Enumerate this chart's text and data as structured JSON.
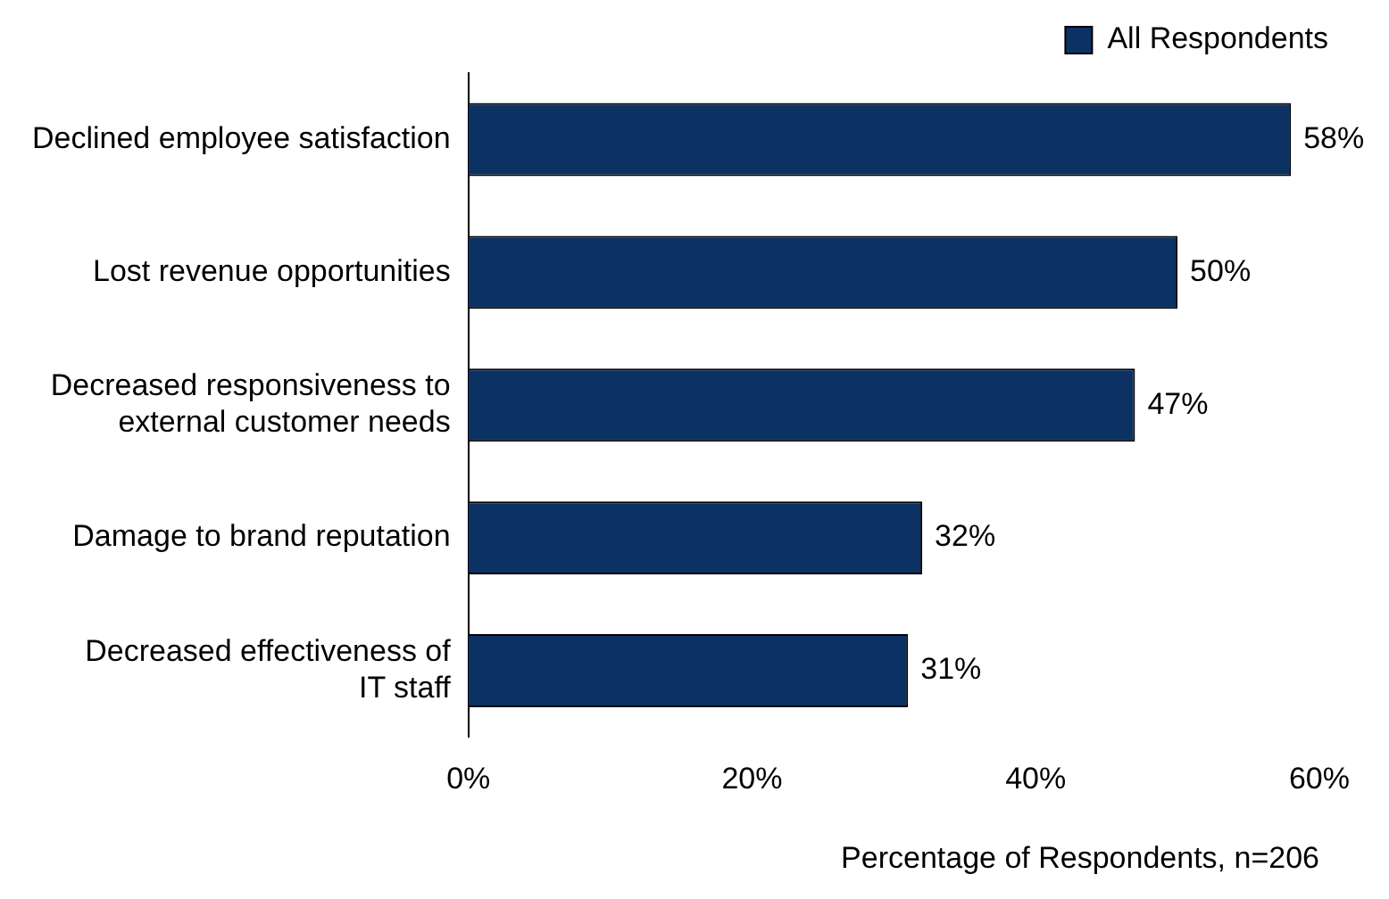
{
  "chart_data": {
    "type": "bar",
    "orientation": "horizontal",
    "categories": [
      "Declined employee satisfaction",
      "Lost revenue opportunities",
      "Decreased responsiveness to external customer needs",
      "Damage to brand reputation",
      "Decreased effectiveness of IT staff"
    ],
    "series": [
      {
        "name": "All Respondents",
        "color": "#0c3264",
        "values": [
          58,
          50,
          47,
          32,
          31
        ],
        "value_labels": [
          "58%",
          "50%",
          "47%",
          "32%",
          "31%"
        ]
      }
    ],
    "xlim": [
      0,
      60
    ],
    "xticks": [
      {
        "value": 0,
        "label": "0%"
      },
      {
        "value": 20,
        "label": "20%"
      },
      {
        "value": 40,
        "label": "40%"
      },
      {
        "value": 60,
        "label": "60%"
      }
    ],
    "xlabel": "Percentage of Respondents, n=206",
    "legend": "top right",
    "grid": false
  }
}
